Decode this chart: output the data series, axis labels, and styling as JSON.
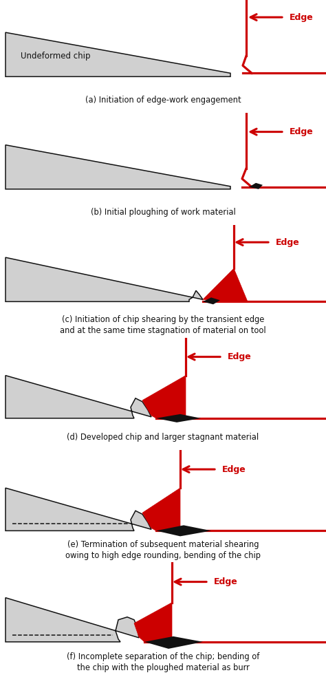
{
  "bg": "#ffffff",
  "red": "#cc0000",
  "black": "#111111",
  "gray": "#d0d0d0",
  "panels": [
    {
      "caption": [
        "(a) Initiation of edge-work engagement"
      ],
      "chip_label": "Undeformed chip",
      "mode": "a"
    },
    {
      "caption": [
        "(b) Initial ploughing of work material"
      ],
      "chip_label": "",
      "mode": "b"
    },
    {
      "caption": [
        "(c) Initiation of chip shearing by the transient edge",
        "and at the same time stagnation of material on tool"
      ],
      "chip_label": "",
      "mode": "c"
    },
    {
      "caption": [
        "(d) Developed chip and larger stagnant material"
      ],
      "chip_label": "",
      "mode": "d"
    },
    {
      "caption": [
        "(e) Termination of subsequent material shearing",
        "owing to high edge rounding, bending of the chip"
      ],
      "chip_label": "",
      "mode": "e"
    },
    {
      "caption": [
        "(f) Incomplete separation of the chip; bending of",
        "the chip with the ploughed material as burr"
      ],
      "chip_label": "",
      "mode": "f"
    }
  ]
}
